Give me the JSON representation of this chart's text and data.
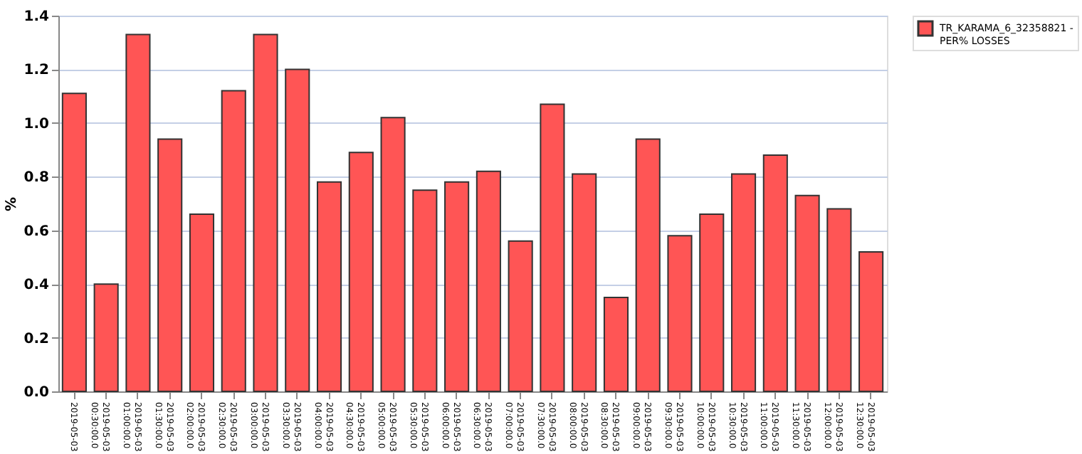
{
  "chart_data": {
    "type": "bar",
    "ylabel": "%",
    "categories": [
      "2019-05-03",
      "2019-05-03 00:30:00.0",
      "2019-05-03 01:00:00.0",
      "2019-05-03 01:30:00.0",
      "2019-05-03 02:00:00.0",
      "2019-05-03 02:30:00.0",
      "2019-05-03 03:00:00.0",
      "2019-05-03 03:30:00.0",
      "2019-05-03 04:00:00.0",
      "2019-05-03 04:30:00.0",
      "2019-05-03 05:00:00.0",
      "2019-05-03 05:30:00.0",
      "2019-05-03 06:00:00.0",
      "2019-05-03 06:30:00.0",
      "2019-05-03 07:00:00.0",
      "2019-05-03 07:30:00.0",
      "2019-05-03 08:00:00.0",
      "2019-05-03 08:30:00.0",
      "2019-05-03 09:00:00.0",
      "2019-05-03 09:30:00.0",
      "2019-05-03 10:00:00.0",
      "2019-05-03 10:30:00.0",
      "2019-05-03 11:00:00.0",
      "2019-05-03 11:30:00.0",
      "2019-05-03 12:00:00.0",
      "2019-05-03 12:30:00.0"
    ],
    "series": [
      {
        "name": "TR_KARAMA_6_32358821 - PER% LOSSES",
        "color": "#ff5555",
        "values": [
          1.11,
          0.4,
          1.33,
          0.94,
          0.66,
          1.12,
          1.33,
          1.2,
          0.78,
          0.89,
          1.02,
          0.75,
          0.78,
          0.82,
          0.56,
          1.07,
          0.81,
          0.35,
          0.94,
          0.58,
          0.66,
          0.81,
          0.88,
          0.73,
          0.68,
          0.52
        ]
      }
    ],
    "ylim": [
      0,
      1.4
    ],
    "yticks": [
      {
        "value": 0,
        "label": "0.0"
      },
      0.2,
      0.4,
      0.6,
      0.8,
      {
        "value": 1,
        "label": "1.0"
      },
      1.2,
      1.4
    ],
    "grid": "y",
    "legend": "right"
  }
}
